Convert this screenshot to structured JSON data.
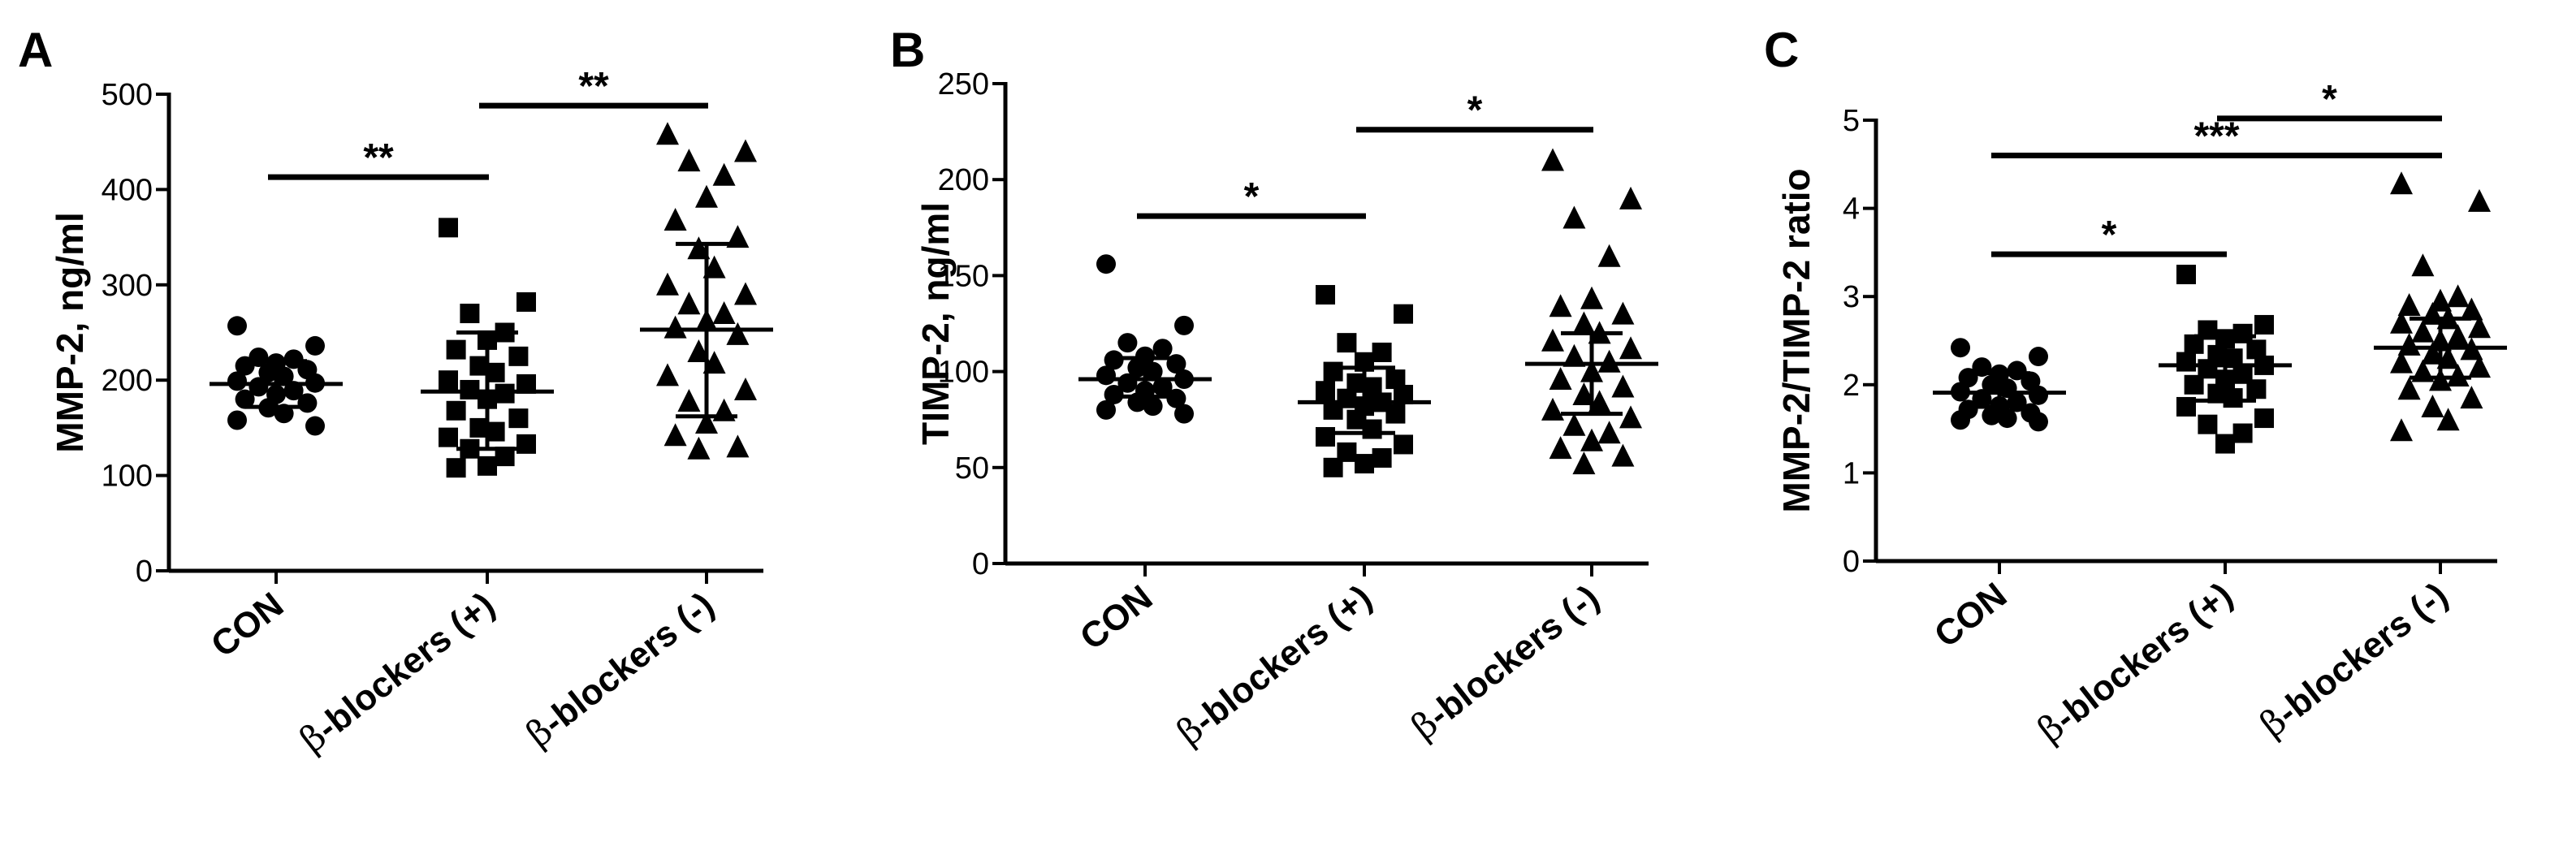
{
  "chart_data": [
    {
      "type": "scatter",
      "panel": "A",
      "ylabel": "MMP-2, ng/ml",
      "ylim": [
        0,
        500
      ],
      "yticks": [
        0,
        100,
        200,
        300,
        400,
        500
      ],
      "categories": [
        {
          "text": "CON"
        },
        {
          "prefix": "β",
          "text": "-blockers (+)"
        },
        {
          "prefix": "β",
          "text": "-blockers (-)"
        }
      ],
      "series": [
        {
          "marker": "circle",
          "mean": 196,
          "sd_low": 172,
          "sd_high": 220,
          "values": [
            257,
            236,
            224,
            222,
            218,
            215,
            211,
            208,
            204,
            199,
            197,
            193,
            189,
            185,
            180,
            176,
            171,
            165,
            158,
            152
          ]
        },
        {
          "marker": "square",
          "mean": 188,
          "sd_low": 128,
          "sd_high": 250,
          "values": [
            360,
            282,
            270,
            250,
            242,
            232,
            225,
            215,
            208,
            200,
            196,
            190,
            186,
            180,
            168,
            160,
            150,
            146,
            140,
            133,
            128,
            120,
            110,
            108
          ]
        },
        {
          "marker": "triangle",
          "mean": 253,
          "sd_low": 162,
          "sd_high": 343,
          "values": [
            458,
            440,
            430,
            415,
            392,
            368,
            350,
            338,
            318,
            300,
            290,
            280,
            270,
            262,
            255,
            248,
            230,
            218,
            205,
            190,
            178,
            168,
            155,
            142,
            130,
            128
          ]
        }
      ],
      "significance": [
        {
          "from": 0,
          "to": 1,
          "y": 413,
          "label": "**"
        },
        {
          "from": 1,
          "to": 2,
          "y": 488,
          "label": "**"
        }
      ]
    },
    {
      "type": "scatter",
      "panel": "B",
      "ylabel": "TIMP-2, ng/ml",
      "ylim": [
        0,
        250
      ],
      "yticks": [
        0,
        50,
        100,
        150,
        200,
        250
      ],
      "categories": [
        {
          "text": "CON"
        },
        {
          "prefix": "β",
          "text": "-blockers (+)"
        },
        {
          "prefix": "β",
          "text": "-blockers (-)"
        }
      ],
      "series": [
        {
          "marker": "circle",
          "mean": 96,
          "sd_low": 87,
          "sd_high": 107,
          "values": [
            156,
            124,
            115,
            112,
            108,
            106,
            104,
            102,
            100,
            98,
            96,
            94,
            92,
            90,
            88,
            86,
            84,
            82,
            80,
            78
          ]
        },
        {
          "marker": "square",
          "mean": 84,
          "sd_low": 68,
          "sd_high": 102,
          "values": [
            140,
            130,
            115,
            110,
            105,
            100,
            96,
            94,
            92,
            90,
            88,
            86,
            84,
            82,
            80,
            78,
            75,
            70,
            66,
            62,
            58,
            55,
            52,
            50
          ]
        },
        {
          "marker": "triangle",
          "mean": 104,
          "sd_low": 78,
          "sd_high": 120,
          "values": [
            210,
            190,
            180,
            160,
            138,
            134,
            130,
            125,
            120,
            116,
            112,
            108,
            105,
            100,
            96,
            92,
            88,
            84,
            80,
            76,
            72,
            68,
            64,
            60,
            56,
            52
          ]
        }
      ],
      "significance": [
        {
          "from": 0,
          "to": 1,
          "y": 181,
          "label": "*"
        },
        {
          "from": 1,
          "to": 2,
          "y": 226,
          "label": "*"
        }
      ]
    },
    {
      "type": "scatter",
      "panel": "C",
      "ylabel": "MMP-2/TIMP-2 ratio",
      "ylim": [
        0,
        5
      ],
      "yticks": [
        0,
        1,
        2,
        3,
        4,
        5
      ],
      "categories": [
        {
          "text": "CON"
        },
        {
          "prefix": "β",
          "text": "-blockers (+)"
        },
        {
          "prefix": "β",
          "text": "-blockers (-)"
        }
      ],
      "series": [
        {
          "marker": "circle",
          "mean": 1.91,
          "sd_low": 1.75,
          "sd_high": 2.13,
          "values": [
            2.42,
            2.32,
            2.2,
            2.16,
            2.12,
            2.08,
            2.04,
            2.0,
            1.96,
            1.92,
            1.88,
            1.84,
            1.8,
            1.76,
            1.72,
            1.68,
            1.65,
            1.62,
            1.6,
            1.58
          ]
        },
        {
          "marker": "square",
          "mean": 2.22,
          "sd_low": 1.82,
          "sd_high": 2.55,
          "values": [
            3.25,
            2.68,
            2.62,
            2.58,
            2.52,
            2.46,
            2.4,
            2.34,
            2.3,
            2.26,
            2.22,
            2.18,
            2.12,
            2.06,
            2.0,
            1.95,
            1.9,
            1.85,
            1.75,
            1.62,
            1.55,
            1.45,
            1.33
          ]
        },
        {
          "marker": "triangle",
          "mean": 2.42,
          "sd_low": 2.08,
          "sd_high": 2.75,
          "values": [
            4.28,
            4.08,
            3.35,
            3.0,
            2.95,
            2.9,
            2.85,
            2.8,
            2.75,
            2.7,
            2.65,
            2.6,
            2.55,
            2.5,
            2.45,
            2.4,
            2.35,
            2.3,
            2.25,
            2.2,
            2.15,
            2.1,
            2.05,
            1.95,
            1.85,
            1.75,
            1.6,
            1.48
          ]
        }
      ],
      "significance": [
        {
          "from": 0,
          "to": 1,
          "y": 3.48,
          "label": "*"
        },
        {
          "from": 0,
          "to": 2,
          "y": 4.6,
          "label": "***"
        },
        {
          "from": 1,
          "to": 2,
          "y": 5.02,
          "label": "*"
        }
      ]
    }
  ]
}
